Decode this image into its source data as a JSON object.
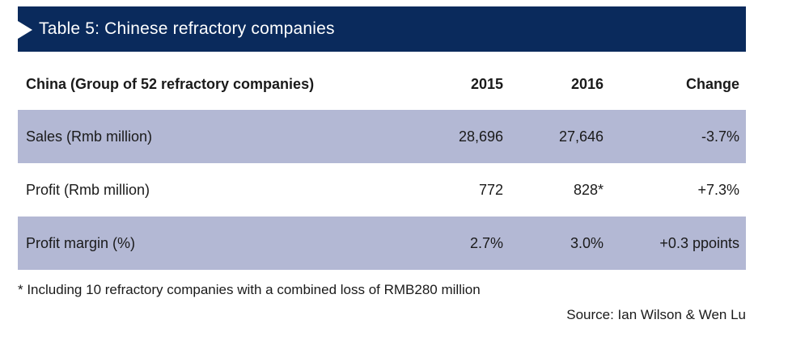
{
  "title": "Table 5: Chinese refractory companies",
  "table": {
    "headers": {
      "label": "China (Group of 52 refractory companies)",
      "y2015": "2015",
      "y2016": "2016",
      "change": "Change"
    },
    "rows": [
      {
        "label": "Sales (Rmb million)",
        "y2015": "28,696",
        "y2016": "27,646",
        "change": "-3.7%"
      },
      {
        "label": "Profit (Rmb million)",
        "y2015": "772",
        "y2016": "828*",
        "change": "+7.3%"
      },
      {
        "label": "Profit margin (%)",
        "y2015": "2.7%",
        "y2016": "3.0%",
        "change": "+0.3 ppoints"
      }
    ]
  },
  "footnote": "* Including 10 refractory companies with a combined loss of RMB280 million",
  "source": "Source: Ian Wilson & Wen Lu",
  "colors": {
    "title_bar": "#0a2a5c",
    "shaded_row": "#b3b8d4"
  }
}
